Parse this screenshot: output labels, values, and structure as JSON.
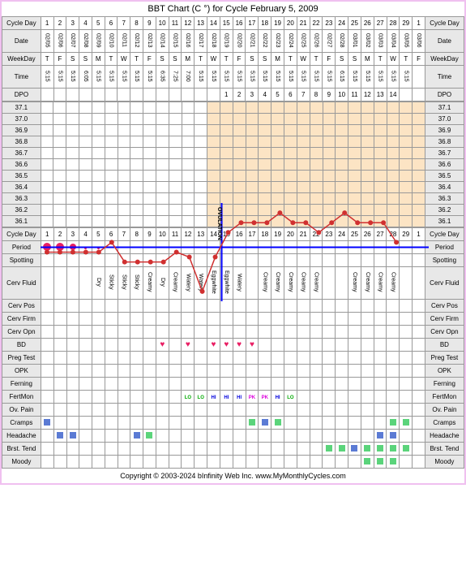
{
  "title": "BBT Chart (C °) for Cycle February 5, 2009",
  "labels": {
    "cycleDay": "Cycle Day",
    "date": "Date",
    "weekday": "WeekDay",
    "time": "Time",
    "dpo": "DPO",
    "period": "Period",
    "spotting": "Spotting",
    "cervFluid": "Cerv Fluid",
    "cervPos": "Cerv Pos",
    "cervFirm": "Cerv Firm",
    "cervOpn": "Cerv Opn",
    "bd": "BD",
    "pregTest": "Preg Test",
    "opk": "OPK",
    "ferning": "Ferning",
    "fertMon": "FertMon",
    "ovPain": "Ov. Pain",
    "cramps": "Cramps",
    "headache": "Headache",
    "brstTend": "Brst. Tend",
    "moody": "Moody",
    "ovulation": "OVULATION"
  },
  "days": [
    {
      "cd": "1",
      "date": "02/05",
      "wd": "T",
      "time": "5:15"
    },
    {
      "cd": "2",
      "date": "02/06",
      "wd": "F",
      "time": "5:15"
    },
    {
      "cd": "3",
      "date": "02/07",
      "wd": "S",
      "time": "5:15"
    },
    {
      "cd": "4",
      "date": "02/08",
      "wd": "S",
      "time": "6:05"
    },
    {
      "cd": "5",
      "date": "02/09",
      "wd": "M",
      "time": "5:15"
    },
    {
      "cd": "6",
      "date": "02/10",
      "wd": "T",
      "time": "5:15"
    },
    {
      "cd": "7",
      "date": "02/11",
      "wd": "W",
      "time": "5:15"
    },
    {
      "cd": "8",
      "date": "02/12",
      "wd": "T",
      "time": "5:15"
    },
    {
      "cd": "9",
      "date": "02/13",
      "wd": "F",
      "time": "5:15"
    },
    {
      "cd": "10",
      "date": "02/14",
      "wd": "S",
      "time": "6:35"
    },
    {
      "cd": "11",
      "date": "02/15",
      "wd": "S",
      "time": "7:25"
    },
    {
      "cd": "12",
      "date": "02/16",
      "wd": "M",
      "time": "7:00"
    },
    {
      "cd": "13",
      "date": "02/17",
      "wd": "T",
      "time": "5:15"
    },
    {
      "cd": "14",
      "date": "02/18",
      "wd": "W",
      "time": "5:15"
    },
    {
      "cd": "15",
      "date": "02/19",
      "wd": "T",
      "time": "5:15"
    },
    {
      "cd": "16",
      "date": "02/20",
      "wd": "F",
      "time": "5:15"
    },
    {
      "cd": "17",
      "date": "02/21",
      "wd": "S",
      "time": "5:15"
    },
    {
      "cd": "18",
      "date": "02/22",
      "wd": "S",
      "time": "5:15"
    },
    {
      "cd": "19",
      "date": "02/23",
      "wd": "M",
      "time": "5:15"
    },
    {
      "cd": "20",
      "date": "02/24",
      "wd": "T",
      "time": "5:15"
    },
    {
      "cd": "21",
      "date": "02/25",
      "wd": "W",
      "time": "5:15"
    },
    {
      "cd": "22",
      "date": "02/26",
      "wd": "T",
      "time": "5:15"
    },
    {
      "cd": "23",
      "date": "02/27",
      "wd": "F",
      "time": "5:15"
    },
    {
      "cd": "24",
      "date": "02/28",
      "wd": "S",
      "time": "6:15"
    },
    {
      "cd": "25",
      "date": "03/01",
      "wd": "S",
      "time": "5:15"
    },
    {
      "cd": "26",
      "date": "03/02",
      "wd": "M",
      "time": "5:15"
    },
    {
      "cd": "27",
      "date": "03/03",
      "wd": "T",
      "time": "5:15"
    },
    {
      "cd": "28",
      "date": "03/04",
      "wd": "W",
      "time": "5:15"
    },
    {
      "cd": "29",
      "date": "03/05",
      "wd": "T",
      "time": "5:15"
    },
    {
      "cd": "1",
      "date": "03/06",
      "wd": "F",
      "time": ""
    }
  ],
  "dpo": [
    "",
    "",
    "",
    "",
    "",
    "",
    "",
    "",
    "",
    "",
    "",
    "",
    "",
    "",
    "1",
    "2",
    "3",
    "4",
    "5",
    "6",
    "7",
    "8",
    "9",
    "10",
    "11",
    "12",
    "13",
    "14",
    "",
    ""
  ],
  "temps": {
    "yaxis": [
      "37.1",
      "37.0",
      "36.9",
      "36.8",
      "36.7",
      "36.6",
      "36.5",
      "36.4",
      "36.3",
      "36.2",
      "36.1"
    ],
    "ymin": 36.1,
    "ymax": 37.1,
    "values": [
      36.6,
      36.6,
      36.6,
      36.6,
      36.6,
      36.7,
      36.5,
      36.5,
      36.5,
      36.5,
      36.6,
      36.55,
      36.2,
      36.55,
      36.8,
      36.9,
      36.9,
      36.9,
      37.0,
      36.9,
      36.9,
      36.8,
      36.9,
      37.0,
      36.9,
      36.9,
      36.9,
      36.7,
      null,
      null
    ],
    "coverline": 36.65,
    "ovulation_day": 14,
    "luteal_start": 14,
    "line_color": "#d03030",
    "dot_color": "#d03030",
    "coverline_color": "#0000ff",
    "ovline_color": "#0000ff"
  },
  "period": [
    {
      "day": 1,
      "size": 10
    },
    {
      "day": 2,
      "size": 10
    },
    {
      "day": 3,
      "size": 8
    },
    {
      "day": 4,
      "size": 3
    },
    {
      "day": 5,
      "size": 3
    }
  ],
  "cervFluid": [
    "",
    "",
    "",
    "",
    "Dry",
    "Sticky",
    "Sticky",
    "Sticky",
    "Creamy",
    "Dry",
    "Creamy",
    "Watery",
    "Watery",
    "Eggwhite",
    "Eggwhite",
    "Watery",
    "",
    "Creamy",
    "Creamy",
    "Creamy",
    "Creamy",
    "Creamy",
    "",
    "",
    "Creamy",
    "Creamy",
    "Creamy",
    "Creamy",
    "",
    ""
  ],
  "bd": [
    0,
    0,
    0,
    0,
    0,
    0,
    0,
    0,
    0,
    1,
    0,
    1,
    0,
    1,
    1,
    1,
    1,
    0,
    0,
    0,
    0,
    0,
    0,
    0,
    0,
    0,
    0,
    0,
    0,
    0
  ],
  "fertMon": [
    "",
    "",
    "",
    "",
    "",
    "",
    "",
    "",
    "",
    "",
    "",
    "LO",
    "LO",
    "HI",
    "HI",
    "HI",
    "PK",
    "PK",
    "HI",
    "LO",
    "",
    "",
    "",
    "",
    "",
    "",
    "",
    "",
    "",
    ""
  ],
  "cramps": [
    {
      "day": 1,
      "c": "blue"
    },
    {
      "day": 17,
      "c": "green"
    },
    {
      "day": 18,
      "c": "blue"
    },
    {
      "day": 19,
      "c": "green"
    },
    {
      "day": 28,
      "c": "green"
    },
    {
      "day": 29,
      "c": "green"
    }
  ],
  "headache": [
    {
      "day": 2,
      "c": "blue"
    },
    {
      "day": 3,
      "c": "blue"
    },
    {
      "day": 8,
      "c": "blue"
    },
    {
      "day": 9,
      "c": "green"
    },
    {
      "day": 27,
      "c": "blue"
    },
    {
      "day": 28,
      "c": "blue"
    }
  ],
  "brstTend": [
    {
      "day": 23,
      "c": "green"
    },
    {
      "day": 24,
      "c": "green"
    },
    {
      "day": 25,
      "c": "blue"
    },
    {
      "day": 26,
      "c": "green"
    },
    {
      "day": 27,
      "c": "green"
    },
    {
      "day": 28,
      "c": "green"
    },
    {
      "day": 29,
      "c": "green"
    }
  ],
  "moody": [
    {
      "day": 26,
      "c": "green"
    },
    {
      "day": 27,
      "c": "green"
    },
    {
      "day": 28,
      "c": "green"
    }
  ],
  "colors": {
    "border": "#999999",
    "label_bg": "#e8e8e8",
    "luteal_bg": "#fce4c4",
    "period": "#e91e63",
    "heart": "#e91e63",
    "blue_sq": "#5b7bd4",
    "green_sq": "#5bd47b",
    "outer_border": "#f0c0f0"
  },
  "footer": "Copyright © 2003-2024 bInfinity Web Inc.     www.MyMonthlyCycles.com"
}
